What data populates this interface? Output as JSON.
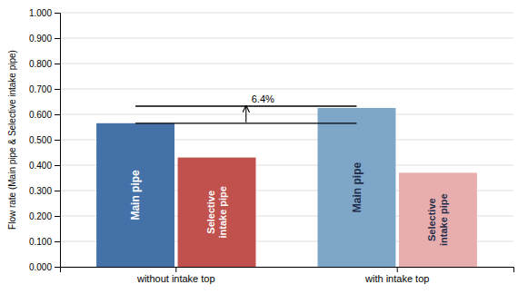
{
  "chart_data": {
    "type": "bar",
    "categories": [
      "without intake top",
      "with intake top"
    ],
    "series": [
      {
        "name": "Main pipe",
        "colors": [
          "#4472A8",
          "#7EA6C8"
        ],
        "values": [
          0.565,
          0.625
        ]
      },
      {
        "name": "Selective\nintake pipe",
        "colors": [
          "#C0514D",
          "#E8AEAE"
        ],
        "values": [
          0.43,
          0.37
        ]
      }
    ],
    "ylabel": "Flow rate (Main pipe & Selective intake pipe)",
    "ylim": [
      0.0,
      1.0
    ],
    "yticks": [
      {
        "value": 0.0,
        "label": "0.000"
      },
      {
        "value": 0.1,
        "label": "0.100"
      },
      {
        "value": 0.2,
        "label": "0.200"
      },
      {
        "value": 0.3,
        "label": "0.300"
      },
      {
        "value": 0.4,
        "label": "0.400"
      },
      {
        "value": 0.5,
        "label": "0.500"
      },
      {
        "value": 0.6,
        "label": "0.600"
      },
      {
        "value": 0.7,
        "label": "0.700"
      },
      {
        "value": 0.8,
        "label": "0.800"
      },
      {
        "value": 0.9,
        "label": "0.900"
      },
      {
        "value": 1.0,
        "label": "1.000"
      }
    ],
    "grid": true,
    "annotations": [
      "6.4%"
    ]
  }
}
